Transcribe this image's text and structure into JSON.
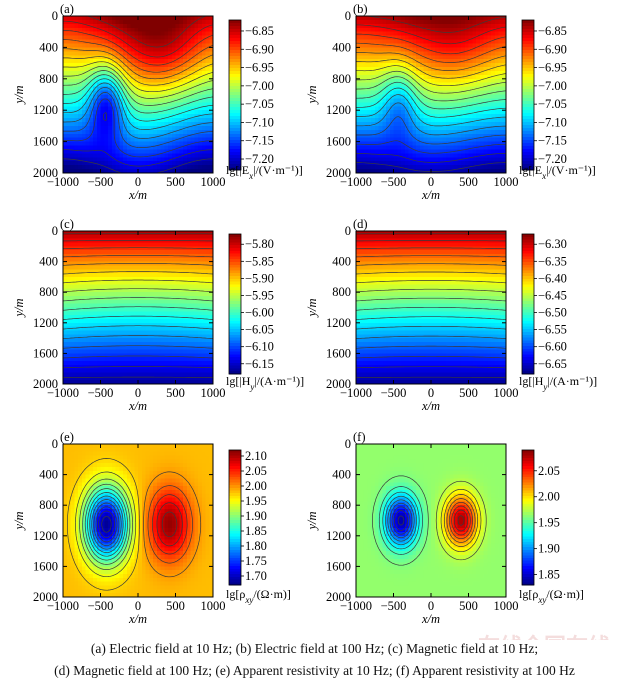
{
  "caption": {
    "line1": "(a) Electric field at 10 Hz; (b) Electric field at 100 Hz; (c) Magnetic field at 10 Hz;",
    "line2": "(d) Magnetic field at 100 Hz; (e) Apparent resistivity at 10 Hz; (f) Apparent resistivity at 100 Hz"
  },
  "watermark": "在线全国在线",
  "chart_data": [
    {
      "type": "heatmap",
      "panel": "(a)",
      "xlabel": "x/m",
      "ylabel": "y/m",
      "xticks": [
        "−1000",
        "−500",
        "0",
        "500",
        "1000"
      ],
      "yticks": [
        "0",
        "400",
        "800",
        "1200",
        "1600",
        "2000"
      ],
      "xlim": [
        -1000,
        1000
      ],
      "ylim": [
        0,
        2000
      ],
      "y_inverted": true,
      "colorbar": {
        "ticks": [
          "-6.85",
          "-6.90",
          "-6.95",
          "-7.00",
          "-7.05",
          "-7.10",
          "-7.15",
          "-7.20"
        ],
        "range": [
          -7.23,
          -6.82
        ]
      },
      "cbar_label": {
        "pre": "lg[|E",
        "sub": "x",
        "post": "|/(V·m⁻¹)]"
      },
      "field": "electric",
      "anomaly_strength": 1.0,
      "colormap": "jet"
    },
    {
      "type": "heatmap",
      "panel": "(b)",
      "xlabel": "x/m",
      "ylabel": "y/m",
      "xticks": [
        "−1000",
        "−500",
        "0",
        "500",
        "1000"
      ],
      "yticks": [
        "0",
        "400",
        "800",
        "1200",
        "1600",
        "2000"
      ],
      "xlim": [
        -1000,
        1000
      ],
      "ylim": [
        0,
        2000
      ],
      "y_inverted": true,
      "colorbar": {
        "ticks": [
          "-6.85",
          "-6.90",
          "-6.95",
          "-7.00",
          "-7.05",
          "-7.10",
          "-7.15",
          "-7.20"
        ],
        "range": [
          -7.23,
          -6.82
        ]
      },
      "cbar_label": {
        "pre": "lg[|E",
        "sub": "x",
        "post": "|/(V·m⁻¹)]"
      },
      "field": "electric",
      "anomaly_strength": 0.55,
      "colormap": "jet"
    },
    {
      "type": "heatmap",
      "panel": "(c)",
      "xlabel": "x/m",
      "ylabel": "y/m",
      "xticks": [
        "−1000",
        "−500",
        "0",
        "500",
        "1000"
      ],
      "yticks": [
        "0",
        "400",
        "800",
        "1200",
        "1600",
        "2000"
      ],
      "xlim": [
        -1000,
        1000
      ],
      "ylim": [
        0,
        2000
      ],
      "y_inverted": true,
      "colorbar": {
        "ticks": [
          "-5.80",
          "-5.85",
          "-5.90",
          "-5.95",
          "-6.00",
          "-6.05",
          "-6.10",
          "-6.15"
        ],
        "range": [
          -6.18,
          -5.77
        ]
      },
      "cbar_label": {
        "pre": "lg[|H",
        "sub": "y",
        "post": "|/(A·m⁻¹)]"
      },
      "field": "magnetic",
      "anomaly_strength": 0.3,
      "colormap": "jet"
    },
    {
      "type": "heatmap",
      "panel": "(d)",
      "xlabel": "x/m",
      "ylabel": "y/m",
      "xticks": [
        "−1000",
        "−500",
        "0",
        "500",
        "1000"
      ],
      "yticks": [
        "0",
        "400",
        "800",
        "1200",
        "1600",
        "2000"
      ],
      "xlim": [
        -1000,
        1000
      ],
      "ylim": [
        0,
        2000
      ],
      "y_inverted": true,
      "colorbar": {
        "ticks": [
          "-6.30",
          "-6.35",
          "-6.40",
          "-6.45",
          "-6.50",
          "-6.55",
          "-6.60",
          "-6.65"
        ],
        "range": [
          -6.68,
          -6.27
        ]
      },
      "cbar_label": {
        "pre": "lg[|H",
        "sub": "y",
        "post": "|/(A·m⁻¹)]"
      },
      "field": "magnetic",
      "anomaly_strength": 0.25,
      "colormap": "jet"
    },
    {
      "type": "heatmap",
      "panel": "(e)",
      "xlabel": "x/m",
      "ylabel": "y/m",
      "xticks": [
        "−1000",
        "−500",
        "0",
        "500",
        "1000"
      ],
      "yticks": [
        "0",
        "400",
        "800",
        "1200",
        "1600",
        "2000"
      ],
      "xlim": [
        -1000,
        1000
      ],
      "ylim": [
        0,
        2000
      ],
      "y_inverted": true,
      "colorbar": {
        "ticks": [
          "2.10",
          "2.05",
          "2.00",
          "1.95",
          "1.90",
          "1.85",
          "1.80",
          "1.75",
          "1.70"
        ],
        "range": [
          1.67,
          2.12
        ]
      },
      "cbar_label": {
        "pre": "lg[ρ",
        "sub": "xy",
        "post": "/(Ω·m)]"
      },
      "field": "resistivity",
      "background": 1.98,
      "low_center": [
        -420,
        1050
      ],
      "high_center": [
        420,
        1050
      ],
      "low_min": 1.68,
      "high_max": 2.11,
      "spread": [
        200,
        330
      ],
      "colormap": "jet"
    },
    {
      "type": "heatmap",
      "panel": "(f)",
      "xlabel": "x/m",
      "ylabel": "y/m",
      "xticks": [
        "−1000",
        "−500",
        "0",
        "500",
        "1000"
      ],
      "yticks": [
        "0",
        "400",
        "800",
        "1200",
        "1600",
        "2000"
      ],
      "xlim": [
        -1000,
        1000
      ],
      "ylim": [
        0,
        2000
      ],
      "y_inverted": true,
      "colorbar": {
        "ticks": [
          "2.05",
          "2.00",
          "1.95",
          "1.90",
          "1.85"
        ],
        "range": [
          1.83,
          2.09
        ]
      },
      "cbar_label": {
        "pre": "lg[ρ",
        "sub": "xy",
        "post": "/(Ω·m)]"
      },
      "field": "resistivity",
      "background": 1.965,
      "low_center": [
        -400,
        1000
      ],
      "high_center": [
        400,
        1000
      ],
      "low_min": 1.84,
      "high_max": 2.08,
      "spread": [
        150,
        230
      ],
      "colormap": "jet"
    }
  ]
}
